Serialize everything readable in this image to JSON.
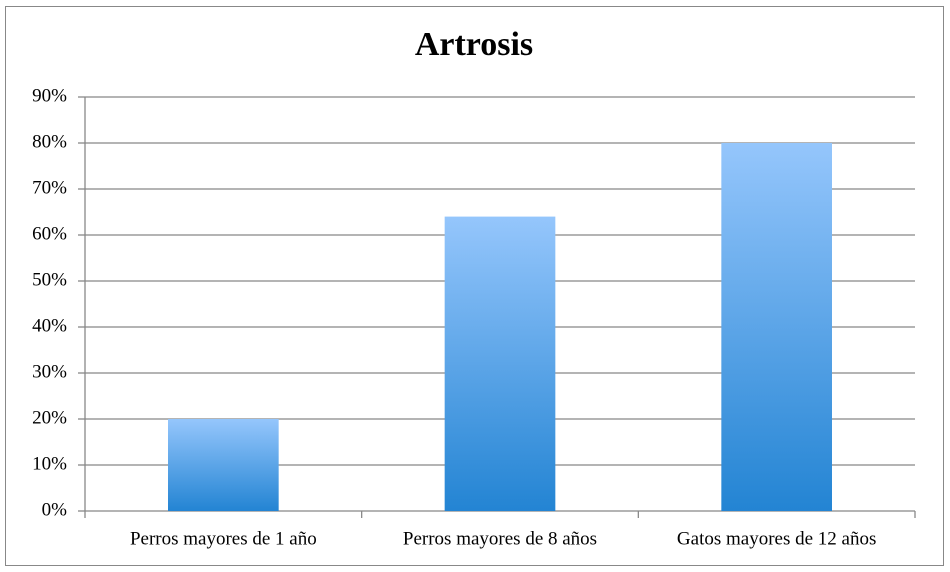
{
  "chart_data": {
    "type": "bar",
    "title": "Artrosis",
    "categories": [
      "Perros mayores de 1 año",
      "Perros mayores de 8 años",
      "Gatos mayores de 12 años"
    ],
    "values": [
      20,
      64,
      80
    ],
    "gradient": [
      "#95c6fc",
      "#2384d3"
    ],
    "ylim": [
      0,
      90
    ],
    "yticks": [
      {
        "value": 0,
        "label": "0%"
      },
      {
        "value": 10,
        "label": "10%"
      },
      {
        "value": 20,
        "label": "20%"
      },
      {
        "value": 30,
        "label": "30%"
      },
      {
        "value": 40,
        "label": "40%"
      },
      {
        "value": 50,
        "label": "50%"
      },
      {
        "value": 60,
        "label": "60%"
      },
      {
        "value": 70,
        "label": "70%"
      },
      {
        "value": 80,
        "label": "80%"
      },
      {
        "value": 90,
        "label": "90%"
      }
    ],
    "grid": true
  }
}
